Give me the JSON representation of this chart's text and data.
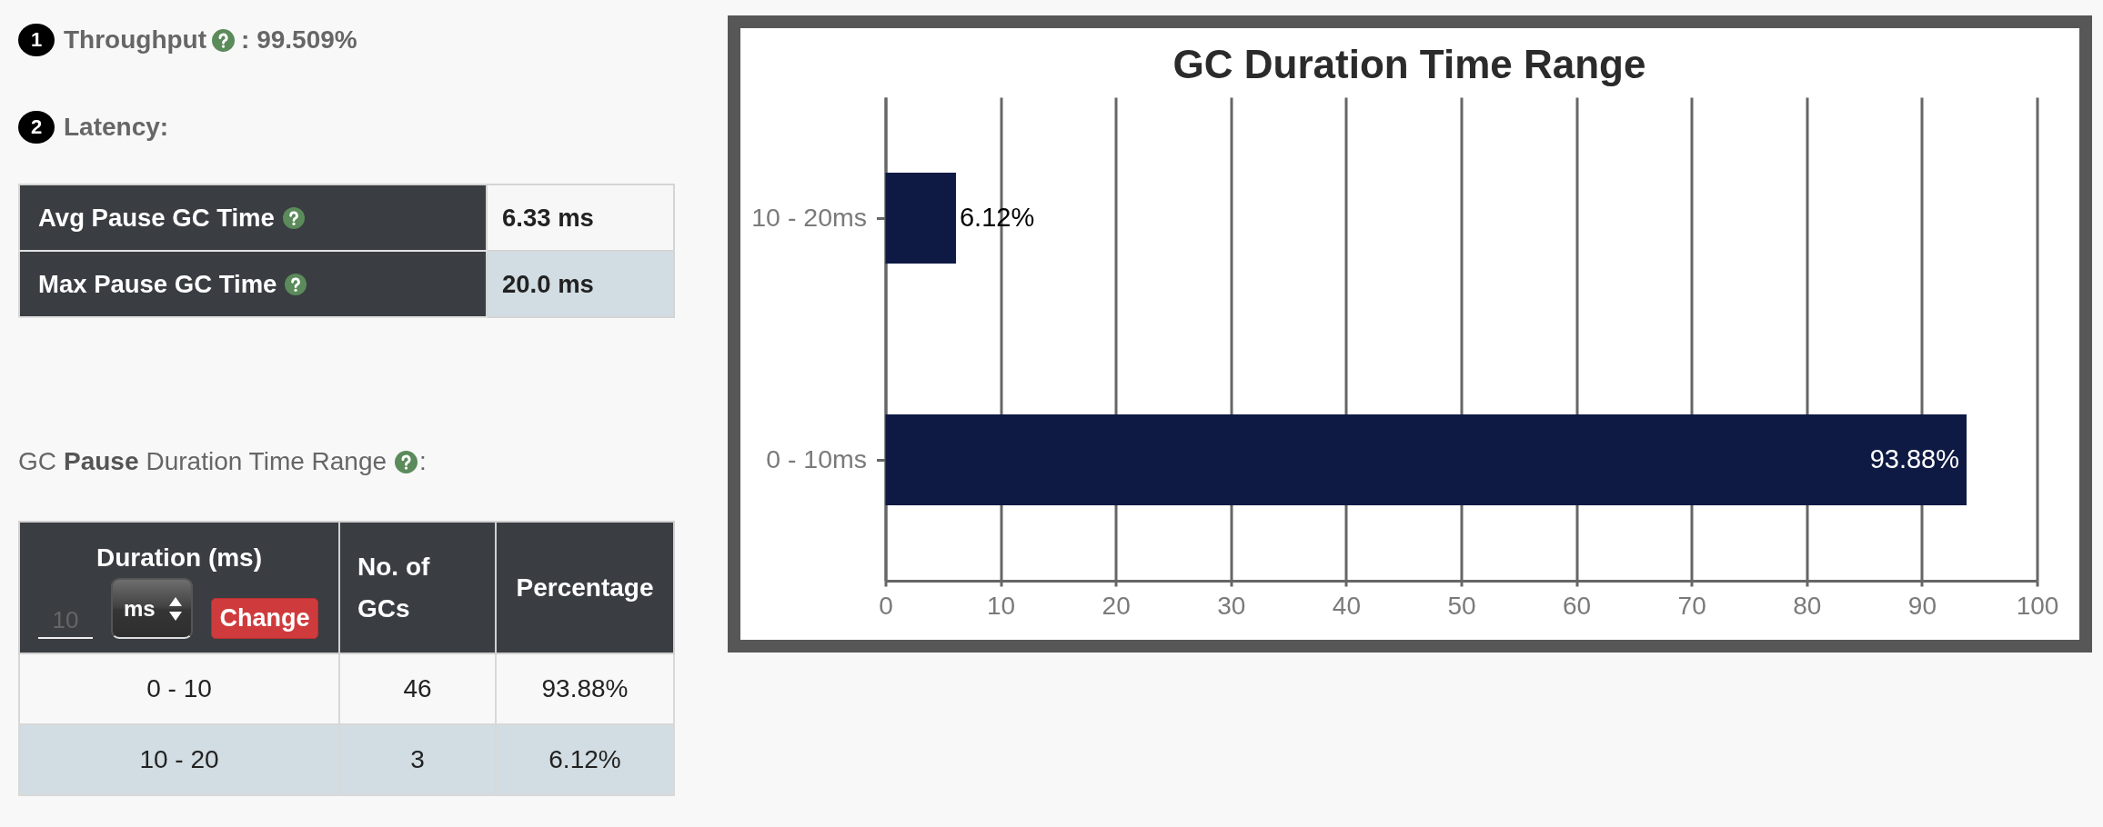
{
  "chart_data": [
    {
      "type": "other",
      "annotations": [
        "1",
        "Throughput",
        ": 99.509%",
        "2",
        "Latency:",
        "Avg Pause GC Time",
        "6.33 ms",
        "Max Pause GC Time",
        "20.0 ms",
        "GC",
        "Pause",
        "Duration Time Range",
        ":",
        "Duration (ms)",
        "10",
        "ms",
        "Change",
        "No. of GCs",
        "Percentage",
        "0 - 10",
        "46",
        "93.88%",
        "10 - 20",
        "3",
        "6.12%"
      ]
    },
    {
      "type": "bar",
      "orientation": "horizontal",
      "title": "GC Duration Time Range",
      "categories": [
        "10 - 20ms",
        "0 - 10ms"
      ],
      "values": [
        6.12,
        93.88
      ],
      "value_labels": [
        "6.12%",
        "93.88%"
      ],
      "color": "#0e1a43",
      "xlim": [
        0,
        100
      ],
      "xticks": [
        0,
        10,
        20,
        30,
        40,
        50,
        60,
        70,
        80,
        90,
        100
      ],
      "grid": "x"
    }
  ]
}
